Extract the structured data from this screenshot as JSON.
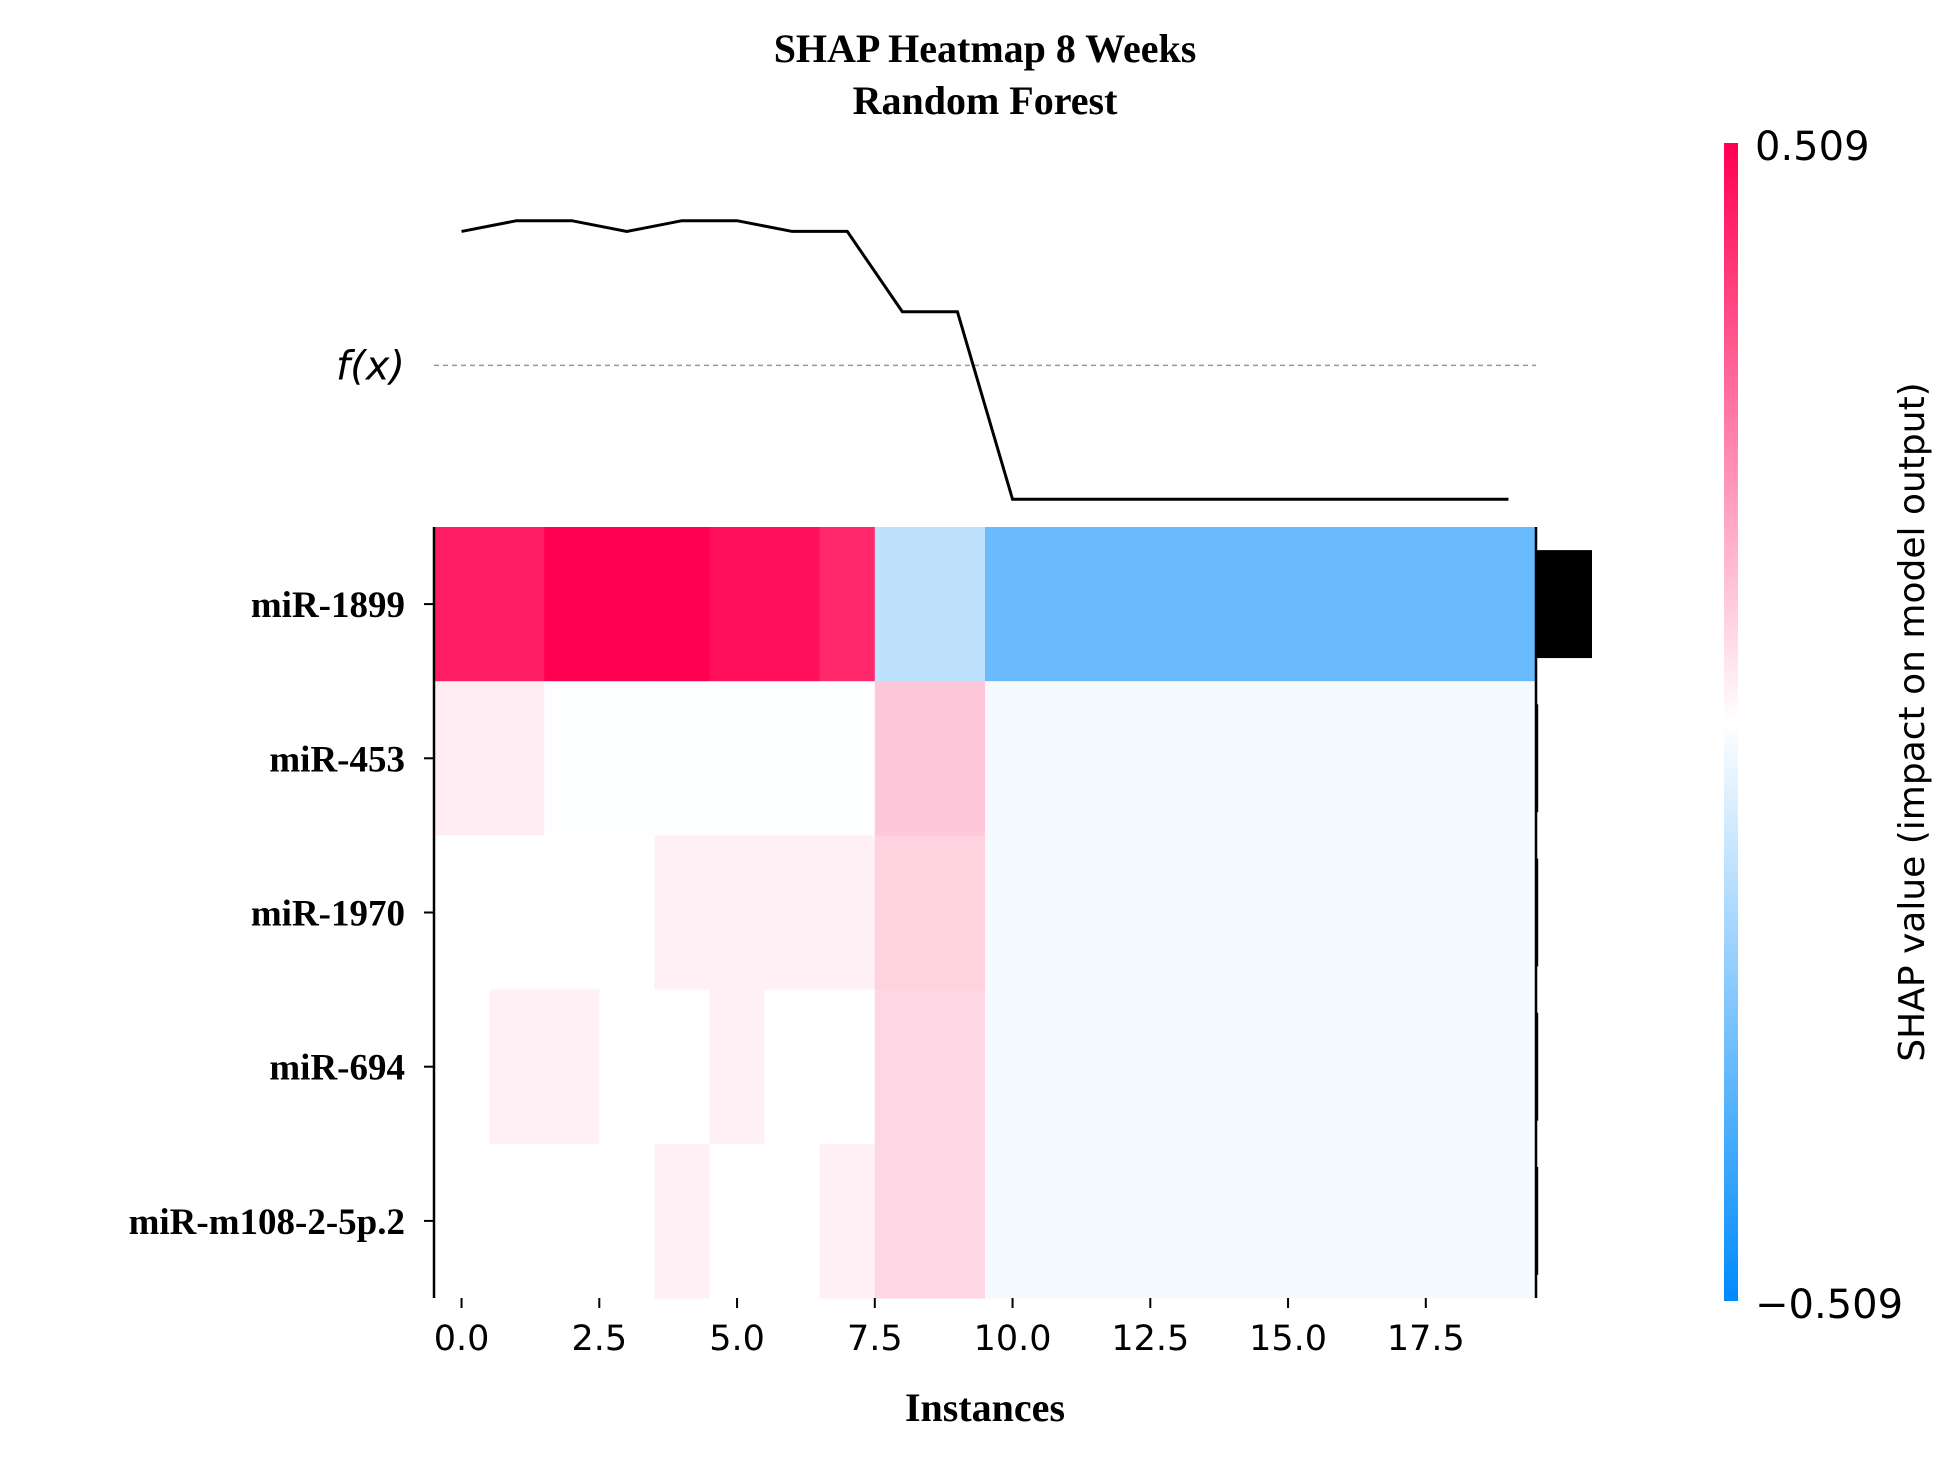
{
  "chart_data": {
    "type": "heatmap",
    "title": "SHAP Heatmap 8 Weeks",
    "subtitle": "Random Forest",
    "xlabel": "Instances",
    "fx_label": "f(x)",
    "features": [
      "miR-1899",
      "miR-453",
      "miR-1970",
      "miR-694",
      "miR-m108-2-5p.2"
    ],
    "instances": [
      0,
      1,
      2,
      3,
      4,
      5,
      6,
      7,
      8,
      9,
      10,
      11,
      12,
      13,
      14,
      15,
      16,
      17,
      18,
      19
    ],
    "xlim": [
      -0.5,
      19.5
    ],
    "x_ticks": [
      "0.0",
      "2.5",
      "5.0",
      "7.5",
      "10.0",
      "12.5",
      "15.0",
      "17.5"
    ],
    "x_tick_values": [
      0,
      2.5,
      5,
      7.5,
      10,
      12.5,
      15,
      17.5
    ],
    "shap_values": [
      [
        0.45,
        0.45,
        0.509,
        0.509,
        0.509,
        0.48,
        0.48,
        0.43,
        -0.13,
        -0.13,
        -0.3,
        -0.3,
        -0.3,
        -0.3,
        -0.3,
        -0.3,
        -0.3,
        -0.3,
        -0.3,
        -0.3
      ],
      [
        0.035,
        0.035,
        -0.005,
        -0.005,
        -0.005,
        -0.005,
        -0.005,
        -0.005,
        0.11,
        0.11,
        -0.02,
        -0.02,
        -0.02,
        -0.02,
        -0.02,
        -0.02,
        -0.02,
        -0.02,
        -0.02,
        -0.02
      ],
      [
        0.0,
        0.0,
        0.0,
        0.0,
        0.03,
        0.03,
        0.03,
        0.03,
        0.09,
        0.09,
        -0.02,
        -0.02,
        -0.02,
        -0.02,
        -0.02,
        -0.02,
        -0.02,
        -0.02,
        -0.02,
        -0.02
      ],
      [
        0.0,
        0.03,
        0.03,
        0.0,
        0.0,
        0.03,
        0.0,
        0.0,
        0.08,
        0.08,
        -0.02,
        -0.02,
        -0.02,
        -0.02,
        -0.02,
        -0.02,
        -0.02,
        -0.02,
        -0.02,
        -0.02
      ],
      [
        0.0,
        0.0,
        0.0,
        0.0,
        0.03,
        0.0,
        0.0,
        0.03,
        0.08,
        0.08,
        -0.02,
        -0.02,
        -0.02,
        -0.02,
        -0.02,
        -0.02,
        -0.02,
        -0.02,
        -0.02,
        -0.02
      ]
    ],
    "fx": [
      0.97,
      0.99,
      0.99,
      0.97,
      0.99,
      0.99,
      0.97,
      0.97,
      0.82,
      0.82,
      0.47,
      0.47,
      0.47,
      0.47,
      0.47,
      0.47,
      0.47,
      0.47,
      0.47,
      0.47
    ],
    "fx_ylim": [
      0.45,
      1.01
    ],
    "fx_baseline": 0.72,
    "feature_importance": [
      0.255,
      0.01,
      0.01,
      0.01,
      0.01
    ],
    "colorbar": {
      "label": "SHAP value (impact on model output)",
      "max_label": "0.509",
      "min_label": "−0.509",
      "vmin": -0.509,
      "vmax": 0.509
    },
    "colors": {
      "positive": "#ff0052",
      "negative": "#008bfb",
      "neutral": "#ffffff"
    }
  }
}
